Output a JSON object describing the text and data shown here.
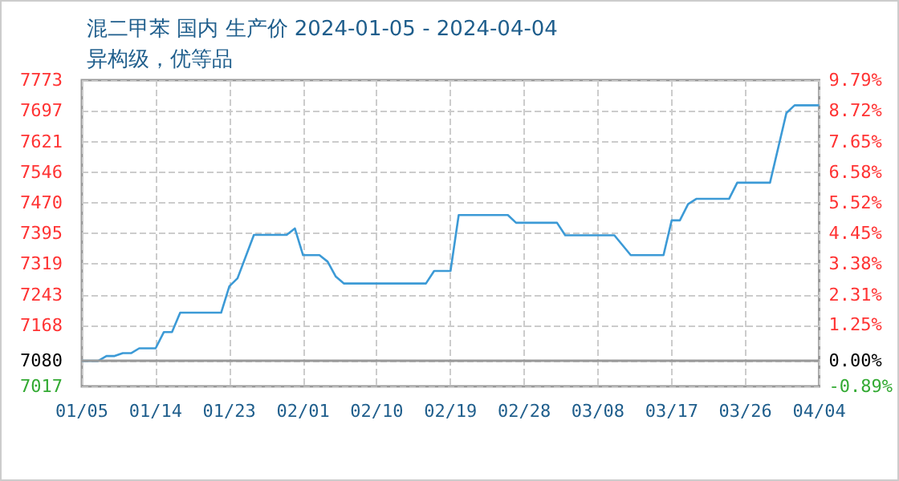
{
  "chart_data": {
    "type": "line",
    "title": "混二甲苯 国内 生产价 2024-01-05 - 2024-04-04",
    "subtitle": "异构级，优等品",
    "x": [
      "2024-01-05",
      "2024-01-07",
      "2024-01-08",
      "2024-01-09",
      "2024-01-10",
      "2024-01-11",
      "2024-01-12",
      "2024-01-14",
      "2024-01-15",
      "2024-01-16",
      "2024-01-17",
      "2024-01-22",
      "2024-01-23",
      "2024-01-24",
      "2024-01-26",
      "2024-01-30",
      "2024-01-31",
      "2024-02-01",
      "2024-02-03",
      "2024-02-04",
      "2024-02-05",
      "2024-02-06",
      "2024-02-16",
      "2024-02-17",
      "2024-02-19",
      "2024-02-20",
      "2024-02-26",
      "2024-02-27",
      "2024-03-03",
      "2024-03-04",
      "2024-03-10",
      "2024-03-12",
      "2024-03-16",
      "2024-03-17",
      "2024-03-18",
      "2024-03-19",
      "2024-03-20",
      "2024-03-24",
      "2024-03-25",
      "2024-03-29",
      "2024-03-31",
      "2024-04-01",
      "2024-04-04"
    ],
    "series": [
      {
        "color": "#3c9ad6",
        "values": [
          7080,
          7080,
          7092,
          7092,
          7099,
          7099,
          7111,
          7111,
          7151,
          7151,
          7199,
          7199,
          7264,
          7284,
          7391,
          7391,
          7407,
          7341,
          7341,
          7325,
          7288,
          7271,
          7271,
          7302,
          7302,
          7440,
          7440,
          7421,
          7421,
          7390,
          7390,
          7341,
          7341,
          7427,
          7427,
          7467,
          7480,
          7480,
          7520,
          7520,
          7692,
          7711,
          7711
        ]
      }
    ],
    "xlim": [
      "2024-01-05",
      "2024-04-04"
    ],
    "xticks": [
      {
        "value": "2024-01-05",
        "label": "01/05"
      },
      {
        "value": "2024-01-14",
        "label": "01/14"
      },
      {
        "value": "2024-01-23",
        "label": "01/23"
      },
      {
        "value": "2024-02-01",
        "label": "02/01"
      },
      {
        "value": "2024-02-10",
        "label": "02/10"
      },
      {
        "value": "2024-02-19",
        "label": "02/19"
      },
      {
        "value": "2024-02-28",
        "label": "02/28"
      },
      {
        "value": "2024-03-08",
        "label": "03/08"
      },
      {
        "value": "2024-03-17",
        "label": "03/17"
      },
      {
        "value": "2024-03-26",
        "label": "03/26"
      },
      {
        "value": "2024-04-04",
        "label": "04/04"
      }
    ],
    "ylim": [
      7017,
      7773
    ],
    "yticks": [
      7017,
      7080,
      7168,
      7243,
      7319,
      7395,
      7470,
      7546,
      7621,
      7697,
      7773
    ],
    "y2lim": [
      -0.89,
      9.79
    ],
    "y2ticks": [
      {
        "value": -0.89,
        "label": "-0.89%"
      },
      {
        "value": 0,
        "label": "0.00%"
      },
      {
        "value": 1.25,
        "label": "1.25%"
      },
      {
        "value": 2.31,
        "label": "2.31%"
      },
      {
        "value": 3.38,
        "label": "3.38%"
      },
      {
        "value": 4.45,
        "label": "4.45%"
      },
      {
        "value": 5.52,
        "label": "5.52%"
      },
      {
        "value": 6.58,
        "label": "6.58%"
      },
      {
        "value": 7.65,
        "label": "7.65%"
      },
      {
        "value": 8.72,
        "label": "8.72%"
      },
      {
        "value": 9.79,
        "label": "9.79%"
      }
    ],
    "ref_lines": [
      {
        "axis": "y",
        "value": 7080,
        "color": "#999999"
      }
    ],
    "grid": true,
    "marker": "none",
    "line_style": "solid"
  }
}
